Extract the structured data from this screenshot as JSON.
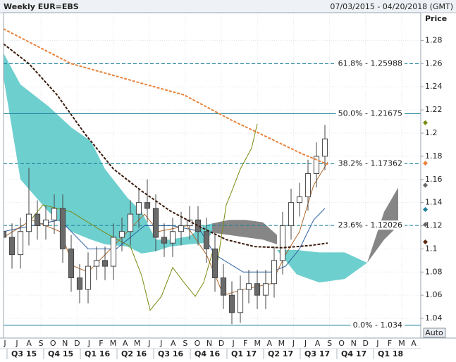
{
  "chart_data": {
    "type": "candlestick",
    "title": "Weekly EUR=EBS",
    "date_range": "07/03/2015 - 04/20/2018 (GMT)",
    "y_label": "Price",
    "button": "Auto",
    "grid": true,
    "xlim": [
      0,
      148
    ],
    "ylim": [
      1.023,
      1.304
    ],
    "yticks": [
      1.04,
      1.06,
      1.08,
      1.1,
      1.12,
      1.14,
      1.16,
      1.18,
      1.2,
      1.22,
      1.24,
      1.26,
      1.28
    ],
    "months": [
      "J",
      "J",
      "A",
      "S",
      "O",
      "N",
      "D",
      "J",
      "F",
      "M",
      "A",
      "M",
      "J",
      "J",
      "A",
      "S",
      "O",
      "N",
      "D",
      "J",
      "F",
      "M",
      "A",
      "M",
      "J",
      "J",
      "A",
      "S",
      "O",
      "N",
      "D",
      "J",
      "F",
      "M",
      "A"
    ],
    "quarters": [
      "Q3 15",
      "Q4 15",
      "Q1 16",
      "Q2 16",
      "Q3 16",
      "Q4 16",
      "Q1 17",
      "Q2 17",
      "Q3 17",
      "Q4 17",
      "Q1 18"
    ],
    "candles": {
      "up_color": "#ffffff",
      "down_color": "#6a6a6a",
      "edge_color": "#444444",
      "x": [
        0,
        3,
        6,
        9,
        12,
        15,
        18,
        21,
        24,
        27,
        30,
        33,
        36,
        39,
        42,
        45,
        48,
        51,
        54,
        57,
        60,
        63,
        66,
        69,
        72,
        75,
        78,
        81,
        84,
        87,
        90,
        93,
        96,
        99,
        102,
        105,
        108,
        111,
        114
      ],
      "open": [
        1.115,
        1.11,
        1.095,
        1.115,
        1.13,
        1.12,
        1.125,
        1.135,
        1.1,
        1.075,
        1.065,
        1.085,
        1.09,
        1.085,
        1.11,
        1.115,
        1.13,
        1.14,
        1.135,
        1.11,
        1.105,
        1.115,
        1.12,
        1.125,
        1.115,
        1.1,
        1.075,
        1.06,
        1.045,
        1.065,
        1.07,
        1.06,
        1.07,
        1.09,
        1.12,
        1.14,
        1.145,
        1.165,
        1.18
      ],
      "high": [
        1.127,
        1.122,
        1.127,
        1.17,
        1.142,
        1.137,
        1.147,
        1.147,
        1.112,
        1.087,
        1.097,
        1.102,
        1.102,
        1.122,
        1.127,
        1.142,
        1.152,
        1.16,
        1.147,
        1.122,
        1.127,
        1.132,
        1.137,
        1.137,
        1.127,
        1.112,
        1.087,
        1.072,
        1.077,
        1.082,
        1.082,
        1.082,
        1.102,
        1.132,
        1.152,
        1.157,
        1.177,
        1.192,
        1.207
      ],
      "low": [
        1.098,
        1.083,
        1.083,
        1.103,
        1.108,
        1.108,
        1.113,
        1.088,
        1.063,
        1.053,
        1.053,
        1.073,
        1.073,
        1.073,
        1.098,
        1.103,
        1.118,
        1.123,
        1.098,
        1.093,
        1.093,
        1.103,
        1.108,
        1.103,
        1.088,
        1.063,
        1.048,
        1.035,
        1.036,
        1.053,
        1.048,
        1.048,
        1.058,
        1.078,
        1.108,
        1.128,
        1.133,
        1.153,
        1.168
      ],
      "close": [
        1.11,
        1.095,
        1.115,
        1.13,
        1.12,
        1.125,
        1.135,
        1.1,
        1.075,
        1.065,
        1.085,
        1.09,
        1.085,
        1.11,
        1.115,
        1.13,
        1.14,
        1.135,
        1.11,
        1.105,
        1.115,
        1.12,
        1.125,
        1.115,
        1.1,
        1.075,
        1.06,
        1.045,
        1.065,
        1.07,
        1.06,
        1.07,
        1.09,
        1.12,
        1.14,
        1.145,
        1.165,
        1.18,
        1.195
      ]
    },
    "clouds": [
      {
        "color": "#66cccc",
        "x": [
          0,
          6,
          16,
          24,
          31,
          36,
          44,
          49,
          54,
          59,
          66,
          71,
          74
        ],
        "upper": [
          1.269,
          1.242,
          1.223,
          1.205,
          1.193,
          1.169,
          1.144,
          1.132,
          1.108,
          1.108,
          1.111,
          1.12,
          1.122
        ],
        "lower": [
          1.248,
          1.16,
          1.132,
          1.115,
          1.108,
          1.104,
          1.102,
          1.096,
          1.098,
          1.102,
          1.104,
          1.105,
          1.114
        ]
      },
      {
        "color": "#7f7f7f",
        "x": [
          74,
          80,
          86,
          92,
          97
        ],
        "upper": [
          1.122,
          1.125,
          1.125,
          1.123,
          1.112
        ],
        "lower": [
          1.114,
          1.112,
          1.11,
          1.108,
          1.104
        ]
      },
      {
        "color": "#66cccc",
        "x": [
          97,
          104,
          112,
          121,
          129
        ],
        "upper": [
          1.099,
          1.099,
          1.097,
          1.097,
          1.088
        ],
        "lower": [
          1.099,
          1.078,
          1.071,
          1.074,
          1.088
        ]
      },
      {
        "color": "#7f7f7f",
        "x": [
          129,
          135,
          140
        ],
        "upper": [
          1.088,
          1.132,
          1.153
        ],
        "lower": [
          1.088,
          1.108,
          1.12
        ]
      }
    ],
    "lines": [
      {
        "color": "#e8823a",
        "dash": true,
        "width": 2,
        "x": [
          0,
          24,
          49,
          64,
          81,
          94,
          106,
          115
        ],
        "values": [
          1.29,
          1.26,
          1.243,
          1.233,
          1.211,
          1.196,
          1.182,
          1.173
        ]
      },
      {
        "color": "#3a1a0a",
        "dash": true,
        "width": 2,
        "x": [
          0,
          9,
          19,
          29,
          39,
          49,
          59,
          69,
          79,
          89,
          99,
          109,
          115
        ],
        "values": [
          1.277,
          1.26,
          1.233,
          1.199,
          1.169,
          1.15,
          1.133,
          1.12,
          1.108,
          1.102,
          1.101,
          1.103,
          1.105
        ]
      },
      {
        "color": "#7a8a10",
        "dash": false,
        "width": 1,
        "x": [
          8,
          14,
          24,
          36,
          45,
          49,
          52,
          56,
          60,
          64,
          68,
          71,
          74,
          76,
          79,
          81,
          84,
          88,
          90
        ],
        "values": [
          1.12,
          1.138,
          1.132,
          1.114,
          1.102,
          1.077,
          1.047,
          1.059,
          1.084,
          1.071,
          1.059,
          1.071,
          1.096,
          1.09,
          1.138,
          1.15,
          1.169,
          1.187,
          1.208
        ]
      },
      {
        "color": "#2a5fa0",
        "dash": false,
        "width": 1,
        "x": [
          0,
          10,
          20,
          30,
          40,
          50,
          60,
          70,
          75,
          85,
          95,
          100,
          105,
          110,
          114
        ],
        "values": [
          1.115,
          1.12,
          1.125,
          1.1,
          1.1,
          1.12,
          1.12,
          1.115,
          1.095,
          1.08,
          1.08,
          1.085,
          1.1,
          1.125,
          1.135
        ]
      },
      {
        "color": "#b0682a",
        "dash": false,
        "width": 1,
        "x": [
          0,
          10,
          20,
          25,
          30,
          40,
          50,
          55,
          65,
          72,
          78,
          85,
          95,
          100,
          105,
          110,
          115
        ],
        "values": [
          1.11,
          1.125,
          1.115,
          1.085,
          1.08,
          1.105,
          1.13,
          1.115,
          1.12,
          1.095,
          1.06,
          1.065,
          1.07,
          1.095,
          1.115,
          1.155,
          1.175
        ]
      }
    ],
    "levels": [
      {
        "value": 1.25988,
        "label": "61.8% - 1.25988",
        "dashed": true
      },
      {
        "value": 1.21675,
        "label": "50.0% - 1.21675",
        "dashed": false
      },
      {
        "value": 1.17362,
        "label": "38.2% - 1.17362",
        "dashed": true
      },
      {
        "value": 1.12026,
        "label": "23.6% - 1.12026",
        "dashed": true
      },
      {
        "value": 1.034,
        "label": "0.0% - 1.034",
        "dashed": false
      }
    ],
    "level_color": "#1b7f9a",
    "markers": [
      {
        "value": 1.209,
        "color": "#7a8a10"
      },
      {
        "value": 1.174,
        "color": "#e8823a"
      },
      {
        "value": 1.155,
        "color": "#666666"
      },
      {
        "value": 1.134,
        "color": "#1b7f9a"
      },
      {
        "value": 1.121,
        "color": "#666666"
      },
      {
        "value": 1.106,
        "color": "#5a2a10"
      }
    ]
  }
}
